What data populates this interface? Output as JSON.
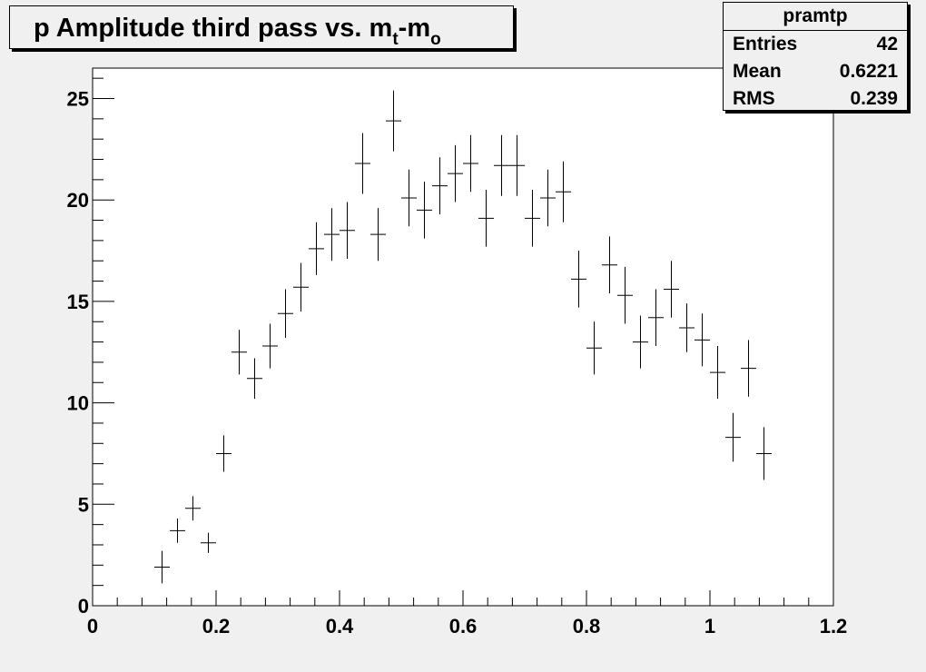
{
  "chart_data": {
    "type": "scatter",
    "title_parts": [
      "p Amplitude third pass vs. m",
      "t",
      "-m",
      "o"
    ],
    "xlabel": "",
    "ylabel": "",
    "xlim": [
      0,
      1.2
    ],
    "ylim": [
      0,
      26.5
    ],
    "x_ticks": [
      "0",
      "0.2",
      "0.4",
      "0.6",
      "0.8",
      "1",
      "1.2"
    ],
    "y_ticks": [
      "0",
      "5",
      "10",
      "15",
      "20",
      "25"
    ],
    "bin_width": 0.025,
    "grid": false,
    "points": [
      {
        "x": 0.1125,
        "y": 1.9,
        "err": 0.8
      },
      {
        "x": 0.1375,
        "y": 3.7,
        "err": 0.6
      },
      {
        "x": 0.1625,
        "y": 4.8,
        "err": 0.6
      },
      {
        "x": 0.1875,
        "y": 3.1,
        "err": 0.5
      },
      {
        "x": 0.2125,
        "y": 7.5,
        "err": 0.9
      },
      {
        "x": 0.2375,
        "y": 12.5,
        "err": 1.1
      },
      {
        "x": 0.2625,
        "y": 11.2,
        "err": 1.0
      },
      {
        "x": 0.2875,
        "y": 12.8,
        "err": 1.1
      },
      {
        "x": 0.3125,
        "y": 14.4,
        "err": 1.2
      },
      {
        "x": 0.3375,
        "y": 15.7,
        "err": 1.2
      },
      {
        "x": 0.3625,
        "y": 17.6,
        "err": 1.3
      },
      {
        "x": 0.3875,
        "y": 18.3,
        "err": 1.3
      },
      {
        "x": 0.4125,
        "y": 18.5,
        "err": 1.4
      },
      {
        "x": 0.4375,
        "y": 21.8,
        "err": 1.5
      },
      {
        "x": 0.4625,
        "y": 18.3,
        "err": 1.3
      },
      {
        "x": 0.4875,
        "y": 23.9,
        "err": 1.5
      },
      {
        "x": 0.5125,
        "y": 20.1,
        "err": 1.4
      },
      {
        "x": 0.5375,
        "y": 19.5,
        "err": 1.4
      },
      {
        "x": 0.5625,
        "y": 20.7,
        "err": 1.4
      },
      {
        "x": 0.5875,
        "y": 21.3,
        "err": 1.4
      },
      {
        "x": 0.6125,
        "y": 21.8,
        "err": 1.4
      },
      {
        "x": 0.6375,
        "y": 19.1,
        "err": 1.4
      },
      {
        "x": 0.6625,
        "y": 21.7,
        "err": 1.5
      },
      {
        "x": 0.6875,
        "y": 21.7,
        "err": 1.5
      },
      {
        "x": 0.7125,
        "y": 19.1,
        "err": 1.4
      },
      {
        "x": 0.7375,
        "y": 20.1,
        "err": 1.4
      },
      {
        "x": 0.7625,
        "y": 20.4,
        "err": 1.5
      },
      {
        "x": 0.7875,
        "y": 16.1,
        "err": 1.4
      },
      {
        "x": 0.8125,
        "y": 12.7,
        "err": 1.3
      },
      {
        "x": 0.8375,
        "y": 16.8,
        "err": 1.4
      },
      {
        "x": 0.8625,
        "y": 15.3,
        "err": 1.4
      },
      {
        "x": 0.8875,
        "y": 13.0,
        "err": 1.3
      },
      {
        "x": 0.9125,
        "y": 14.2,
        "err": 1.4
      },
      {
        "x": 0.9375,
        "y": 15.6,
        "err": 1.4
      },
      {
        "x": 0.9625,
        "y": 13.7,
        "err": 1.2
      },
      {
        "x": 0.9875,
        "y": 13.1,
        "err": 1.3
      },
      {
        "x": 1.0125,
        "y": 11.5,
        "err": 1.3
      },
      {
        "x": 1.0375,
        "y": 8.3,
        "err": 1.2
      },
      {
        "x": 1.0625,
        "y": 11.7,
        "err": 1.4
      },
      {
        "x": 1.0875,
        "y": 7.5,
        "err": 1.3
      }
    ]
  },
  "stats": {
    "name": "pramtp",
    "rows": [
      {
        "label": "Entries",
        "value": "42"
      },
      {
        "label": "Mean",
        "value": "0.6221"
      },
      {
        "label": "RMS",
        "value": "0.239"
      }
    ]
  }
}
